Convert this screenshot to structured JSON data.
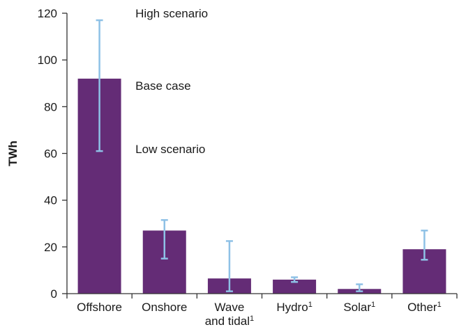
{
  "chart_data": {
    "type": "bar",
    "ylabel": "TWh",
    "ylim": [
      0,
      120
    ],
    "yticks": [
      0,
      20,
      40,
      60,
      80,
      100,
      120
    ],
    "grid": false,
    "categories": [
      {
        "lines": [
          "Offshore"
        ],
        "sup": ""
      },
      {
        "lines": [
          "Onshore"
        ],
        "sup": ""
      },
      {
        "lines": [
          "Wave",
          "and tidal"
        ],
        "sup": "1"
      },
      {
        "lines": [
          "Hydro"
        ],
        "sup": "1"
      },
      {
        "lines": [
          "Solar"
        ],
        "sup": "1"
      },
      {
        "lines": [
          "Other"
        ],
        "sup": "1"
      }
    ],
    "values": [
      92,
      27,
      6.5,
      6,
      2,
      19
    ],
    "low": [
      61,
      15,
      1,
      5,
      1,
      14.5
    ],
    "high": [
      117,
      31.5,
      22.5,
      7,
      4,
      27
    ],
    "bar_color": "#642c76",
    "error_color": "#8ec1e6",
    "annotations": {
      "high": "High scenario",
      "base": "Base case",
      "low": "Low scenario"
    }
  }
}
